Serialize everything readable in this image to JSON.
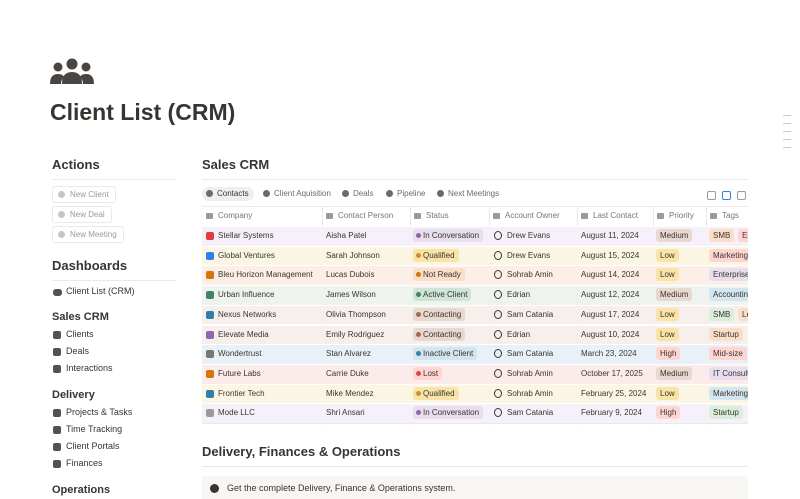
{
  "header": {
    "title": "Client List (CRM)"
  },
  "sidebar": {
    "actions": {
      "heading": "Actions",
      "buttons": [
        "New Client",
        "New Deal",
        "New Meeting"
      ]
    },
    "dashboards": {
      "heading": "Dashboards",
      "items": [
        "Client List (CRM)"
      ]
    },
    "groups": [
      {
        "heading": "Sales CRM",
        "items": [
          "Clients",
          "Deals",
          "Interactions"
        ]
      },
      {
        "heading": "Delivery",
        "items": [
          "Projects & Tasks",
          "Time Tracking",
          "Client Portals",
          "Finances"
        ]
      },
      {
        "heading": "Operations",
        "items": []
      }
    ]
  },
  "main": {
    "heading": "Sales CRM",
    "tabs": [
      "Contacts",
      "Client Aquisition",
      "Deals",
      "Pipeline",
      "Next Meetings"
    ],
    "columns": [
      "Company",
      "Contact Person",
      "Status",
      "Account Owner",
      "Last Contact",
      "Priority",
      "Tags"
    ],
    "rows": [
      {
        "company": "Stellar Systems",
        "contact": "Aisha Patel",
        "status": "In Conversation",
        "owner": "Drew Evans",
        "last_contact": "August 11, 2024",
        "priority": "Medium",
        "tags": [
          "SMB",
          "En"
        ]
      },
      {
        "company": "Global Ventures",
        "contact": "Sarah Johnson",
        "status": "Qualified",
        "owner": "Drew Evans",
        "last_contact": "August 15, 2024",
        "priority": "Low",
        "tags": [
          "Marketing"
        ]
      },
      {
        "company": "Bleu Horizon Management",
        "contact": "Lucas Dubois",
        "status": "Not Ready",
        "owner": "Sohrab Amin",
        "last_contact": "August 14, 2024",
        "priority": "Low",
        "tags": [
          "Enterprise"
        ]
      },
      {
        "company": "Urban Influence",
        "contact": "James Wilson",
        "status": "Active Client",
        "owner": "Edrian",
        "last_contact": "August 12, 2024",
        "priority": "Medium",
        "tags": [
          "Accounting"
        ]
      },
      {
        "company": "Nexus Networks",
        "contact": "Olivia Thompson",
        "status": "Contacting",
        "owner": "Sam Catania",
        "last_contact": "August 17, 2024",
        "priority": "Low",
        "tags": [
          "SMB",
          "Le"
        ]
      },
      {
        "company": "Elevate Media",
        "contact": "Emily Rodriguez",
        "status": "Contacting",
        "owner": "Edrian",
        "last_contact": "August 10, 2024",
        "priority": "Low",
        "tags": [
          "Startup"
        ]
      },
      {
        "company": "Wondertrust",
        "contact": "Stan Alvarez",
        "status": "Inactive Client",
        "owner": "Sam Catania",
        "last_contact": "March 23, 2024",
        "priority": "High",
        "tags": [
          "Mid-size"
        ]
      },
      {
        "company": "Future Labs",
        "contact": "Carrie Duke",
        "status": "Lost",
        "owner": "Sohrab Amin",
        "last_contact": "October 17, 2025",
        "priority": "Medium",
        "tags": [
          "IT Consulting"
        ]
      },
      {
        "company": "Frontier Tech",
        "contact": "Mike Mendez",
        "status": "Qualified",
        "owner": "Sohrab Amin",
        "last_contact": "February 25, 2024",
        "priority": "Low",
        "tags": [
          "Marketing"
        ]
      },
      {
        "company": "Mode LLC",
        "contact": "Shri Ansari",
        "status": "In Conversation",
        "owner": "Sam Catania",
        "last_contact": "February 9, 2024",
        "priority": "High",
        "tags": [
          "Startup"
        ]
      }
    ],
    "section2": {
      "heading": "Delivery, Finances & Operations",
      "callout": "Get the complete Delivery, Finance & Operations system."
    }
  }
}
